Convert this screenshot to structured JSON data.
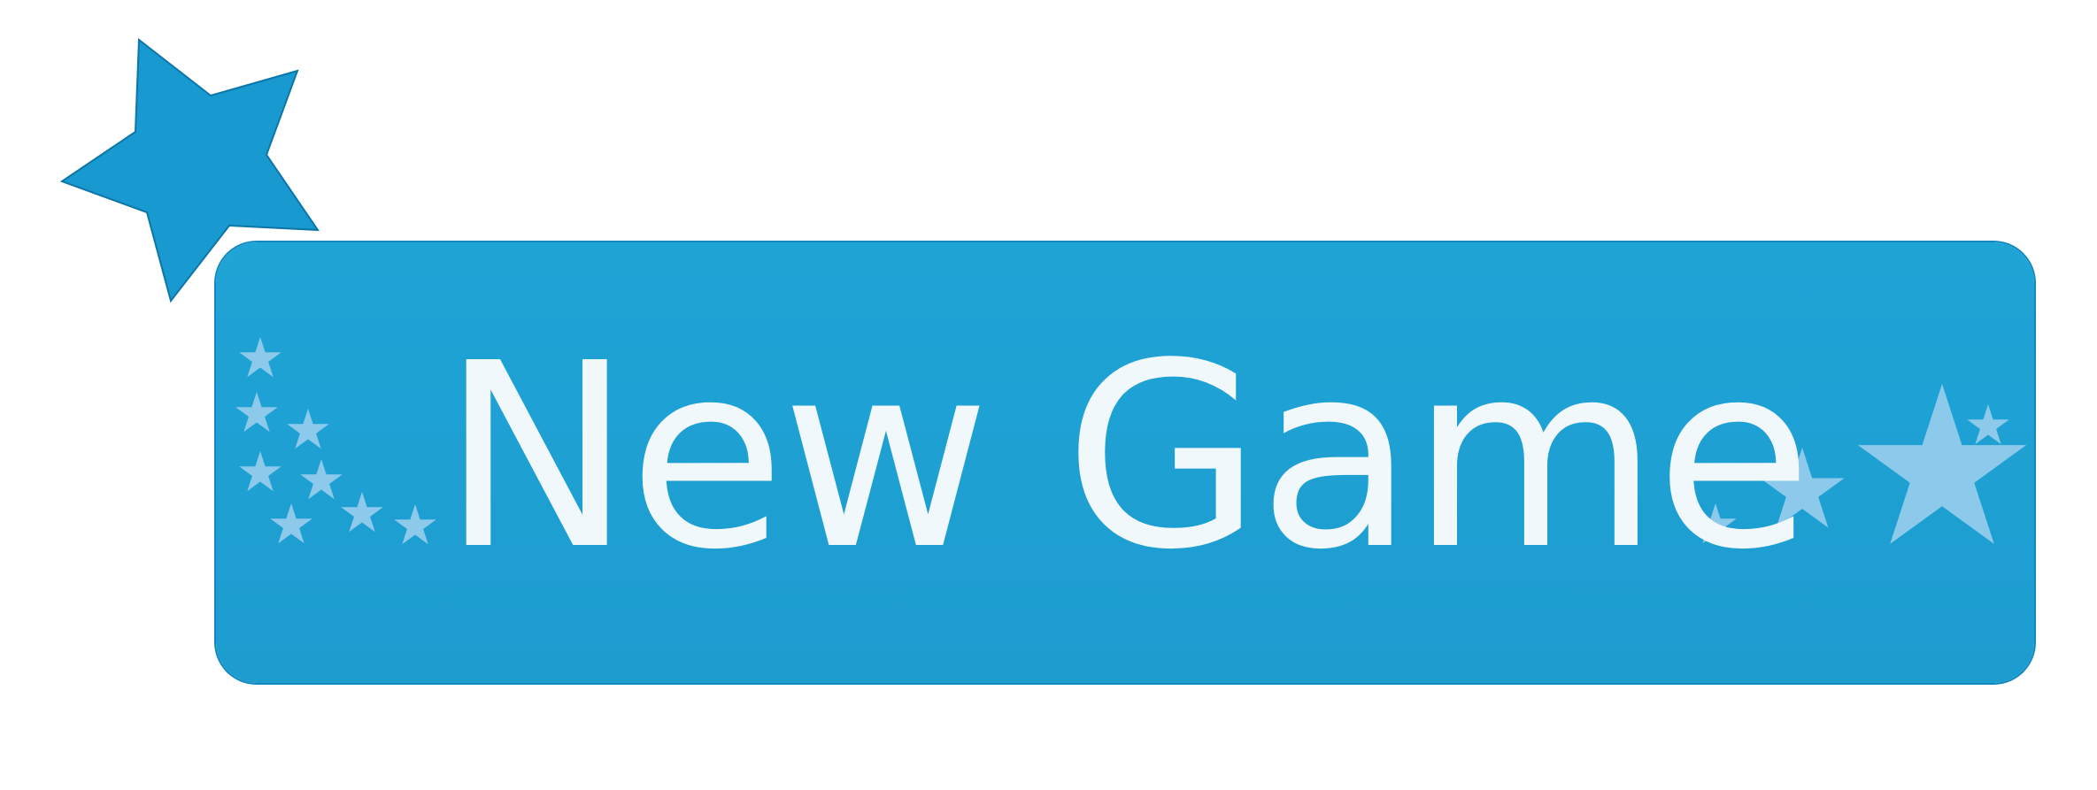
{
  "button": {
    "label": "New Game"
  },
  "colors": {
    "button_fill": "#1ea3d4",
    "button_border": "#1288bf",
    "label_text": "#f1f8fc",
    "corner_star": "#1899d0",
    "corner_star_outline": "#0d76a8",
    "decor_star": "#8cc9ea"
  },
  "icons": {
    "corner": "star-icon",
    "decor": "star-icon"
  }
}
